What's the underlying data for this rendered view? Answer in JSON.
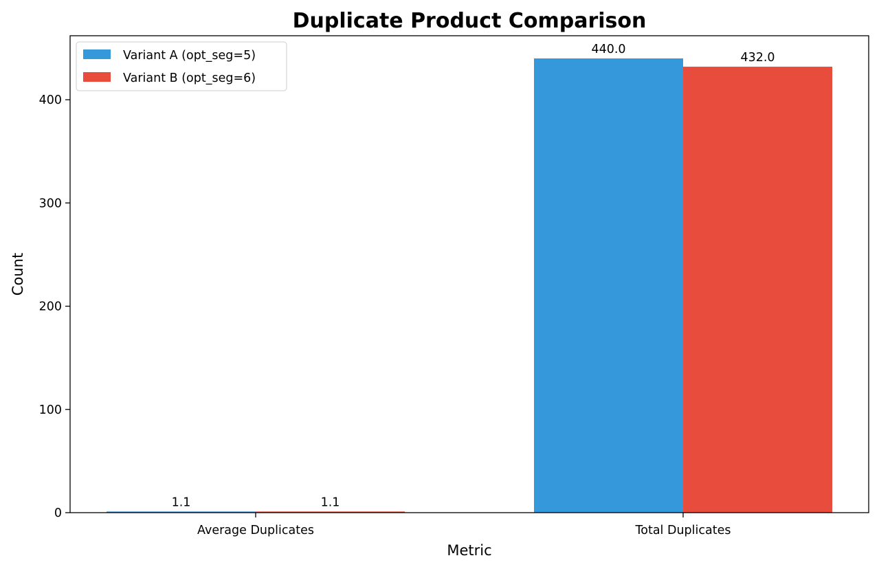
{
  "chart_data": {
    "type": "bar",
    "title": "Duplicate Product Comparison",
    "xlabel": "Metric",
    "ylabel": "Count",
    "categories": [
      "Average Duplicates",
      "Total Duplicates"
    ],
    "series": [
      {
        "name": "Variant A (opt_seg=5)",
        "values": [
          1.1,
          440.0
        ],
        "value_labels": [
          "1.1",
          "440.0"
        ],
        "color": "#3498db"
      },
      {
        "name": "Variant B (opt_seg=6)",
        "values": [
          1.1,
          432.0
        ],
        "value_labels": [
          "1.1",
          "432.0"
        ],
        "color": "#e74c3c"
      }
    ],
    "ylim": [
      0,
      462
    ],
    "yticks": [
      "0",
      "100",
      "200",
      "300",
      "400"
    ],
    "grid": false,
    "legend": "top-left"
  }
}
